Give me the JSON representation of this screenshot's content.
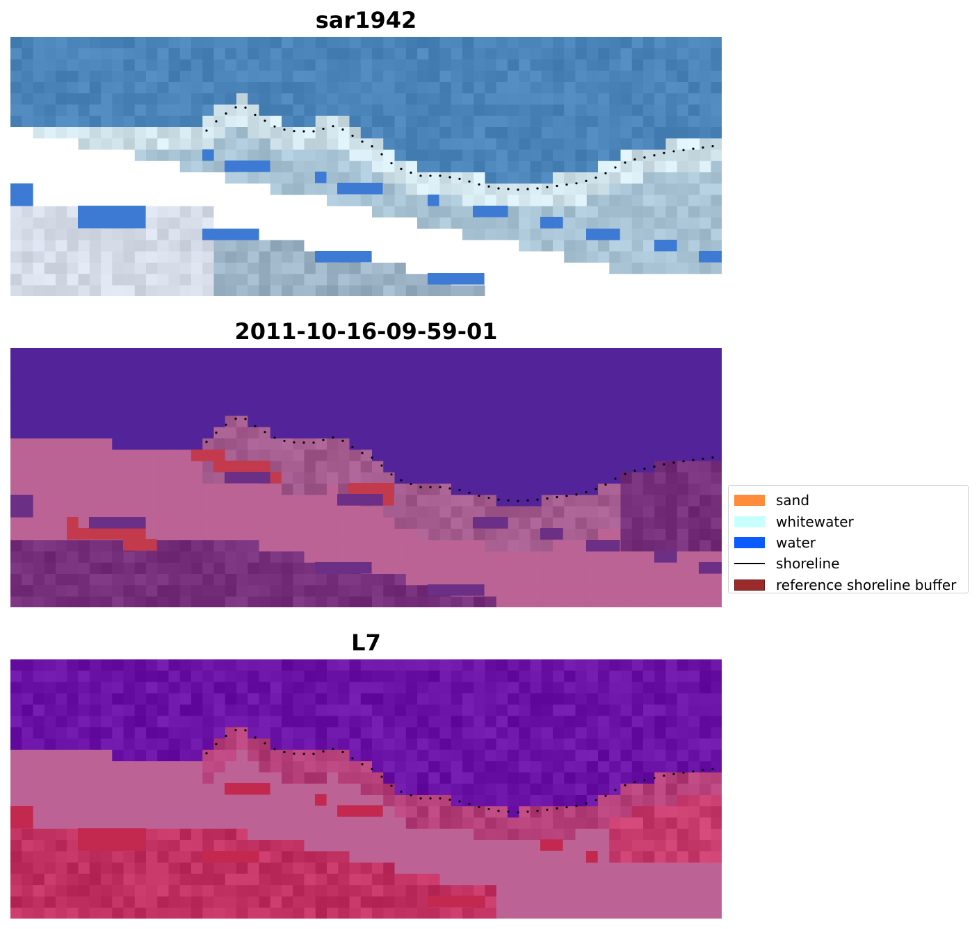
{
  "panels": [
    {
      "title": "sar1942",
      "style": "rgb"
    },
    {
      "title": "2011-10-16-09-59-01",
      "style": "classified"
    },
    {
      "title": "L7",
      "style": "ndwi"
    }
  ],
  "legend": {
    "items": [
      {
        "label": "sand",
        "color": "#ff8c3a",
        "kind": "patch"
      },
      {
        "label": "whitewater",
        "color": "#c8ffff",
        "kind": "patch"
      },
      {
        "label": "water",
        "color": "#0a5cff",
        "kind": "patch"
      },
      {
        "label": "shoreline",
        "color": "#000000",
        "kind": "line"
      },
      {
        "label": "reference shoreline buffer",
        "color": "#9b2a2a",
        "kind": "patch"
      }
    ]
  },
  "colors": {
    "rgb_water": "#4b84b8",
    "rgb_land": "#9bb2c4",
    "rgb_nodata": "#ffffff",
    "class_water": "#532499",
    "class_land": "#bb6394",
    "class_dark": "#762f7a",
    "class_buffer": "#c23a4c",
    "ndwi_water": "#6a12a6",
    "ndwi_land": "#bd6295",
    "ndwi_red": "#c3284f"
  }
}
